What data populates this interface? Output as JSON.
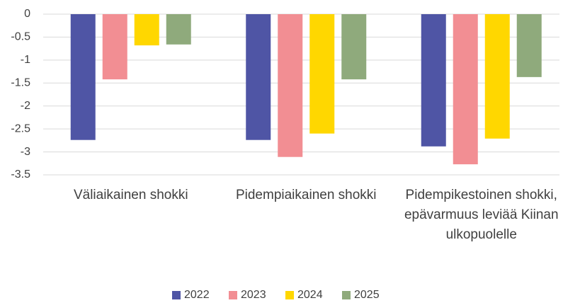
{
  "chart_data": {
    "type": "bar",
    "categories": [
      "Väliaikainen shokki",
      "Pidempiaikainen shokki",
      "Pidempikestoinen shokki, epävarmuus leviää Kiinan ulkopuolelle"
    ],
    "series": [
      {
        "name": "2022",
        "color": "#4f55a5",
        "values": [
          -2.74,
          -2.74,
          -2.88
        ]
      },
      {
        "name": "2023",
        "color": "#f28e93",
        "values": [
          -1.42,
          -3.11,
          -3.27
        ]
      },
      {
        "name": "2024",
        "color": "#ffd700",
        "values": [
          -0.68,
          -2.6,
          -2.71
        ]
      },
      {
        "name": "2025",
        "color": "#8faa7c",
        "values": [
          -0.66,
          -1.42,
          -1.37
        ]
      }
    ],
    "ylim": [
      -3.5,
      0
    ],
    "yticks": [
      0,
      -0.5,
      -1,
      -1.5,
      -2,
      -2.5,
      -3,
      -3.5
    ],
    "grid": true,
    "legend": "bottom"
  }
}
